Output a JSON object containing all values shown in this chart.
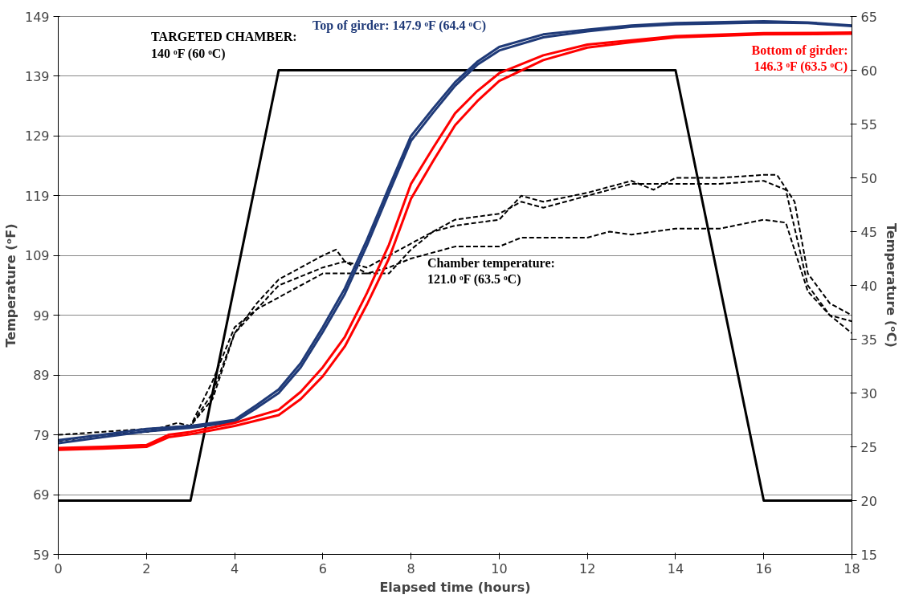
{
  "chart_data": {
    "type": "line",
    "xlabel": "Elapsed time (hours)",
    "ylabel": "Temperature (ᵒF)",
    "y2label": "Temperature (ᵒC)",
    "xlim": [
      0,
      18
    ],
    "xticks": [
      0,
      2,
      4,
      6,
      8,
      10,
      12,
      14,
      16,
      18
    ],
    "ylim": [
      59,
      149
    ],
    "yticks": [
      59,
      69,
      79,
      89,
      99,
      109,
      119,
      129,
      139,
      149
    ],
    "y2lim": [
      15,
      65
    ],
    "y2ticks": [
      15,
      20,
      25,
      30,
      35,
      40,
      45,
      50,
      55,
      60,
      65
    ],
    "grid": "y",
    "marker": "none",
    "series": [
      {
        "color": "#000000",
        "line_style": "solid",
        "x": [
          0,
          3,
          5,
          14,
          16,
          18
        ],
        "values": [
          68,
          68,
          140,
          140,
          68,
          68
        ]
      },
      {
        "color": "#000000",
        "line_style": "dashed",
        "x": [
          0,
          1,
          2,
          2.7,
          3,
          3.5,
          4,
          4.5,
          5,
          5.5,
          6,
          6.3,
          6.5,
          7,
          7.5,
          8,
          8.5,
          9,
          10,
          10.5,
          11,
          12,
          13,
          13.5,
          14,
          15,
          16,
          16.3,
          16.7,
          17,
          17.5,
          18
        ],
        "values": [
          78,
          79,
          79.5,
          81,
          80.5,
          85,
          96,
          101,
          105,
          107,
          109,
          110,
          108,
          106,
          106,
          110,
          113,
          114,
          115,
          119,
          118,
          119.5,
          121.5,
          120,
          122,
          122,
          122.5,
          122.5,
          118,
          106,
          101,
          99
        ]
      },
      {
        "color": "#000000",
        "line_style": "dashed",
        "x": [
          0,
          1,
          2,
          3,
          3.5,
          4,
          5,
          6,
          6.5,
          7,
          8,
          9,
          10,
          10.5,
          11,
          12,
          13,
          14,
          15,
          16,
          16.5,
          17,
          17.5,
          18
        ],
        "values": [
          78,
          79,
          79.5,
          80.5,
          86,
          96,
          104,
          107,
          108,
          107,
          111,
          115,
          116,
          118,
          117,
          119,
          121,
          121,
          121,
          121.5,
          120,
          104,
          99,
          96
        ]
      },
      {
        "color": "#000000",
        "line_style": "dashed",
        "x": [
          0,
          2,
          3,
          3.5,
          4,
          4.5,
          5,
          5.5,
          6,
          6.5,
          7,
          7.5,
          8,
          9,
          10,
          10.5,
          11,
          12,
          12.5,
          13,
          14,
          15,
          16,
          16.5,
          17,
          17.5,
          18
        ],
        "values": [
          79,
          80,
          80.5,
          88,
          97,
          100,
          102,
          104,
          106,
          106,
          106,
          107,
          108.5,
          110.5,
          110.5,
          112,
          112,
          112,
          113,
          112.5,
          113.5,
          113.5,
          115,
          114.5,
          103,
          99,
          98
        ]
      },
      {
        "color": "#1f3a78",
        "line_style": "solid",
        "x": [
          0,
          1,
          2,
          3,
          4,
          4.5,
          5,
          5.5,
          6,
          6.5,
          7,
          7.5,
          8,
          8.5,
          9,
          9.5,
          10,
          11,
          12,
          13,
          14,
          16,
          17,
          18
        ],
        "values": [
          78.1,
          79,
          80,
          80.5,
          81.5,
          84,
          86.6,
          91,
          97,
          103.5,
          111.6,
          120.4,
          129,
          133.6,
          138,
          141.4,
          143.9,
          146,
          146.8,
          147.5,
          147.9,
          148.2,
          148,
          147.5
        ]
      },
      {
        "color": "#1f3a78",
        "line_style": "solid",
        "x": [
          0,
          1,
          2,
          3,
          4,
          4.5,
          5,
          5.5,
          6,
          6.5,
          7,
          7.5,
          8,
          8.5,
          9,
          9.5,
          10,
          11,
          12,
          13,
          14,
          16,
          17,
          18
        ],
        "values": [
          77.6,
          78.6,
          79.6,
          80.2,
          81.2,
          83.5,
          86,
          90.3,
          96.2,
          102.6,
          110.7,
          119.5,
          128.2,
          132.9,
          137.4,
          140.9,
          143.3,
          145.5,
          146.5,
          147.3,
          147.7,
          148,
          147.9,
          147.4
        ]
      },
      {
        "color": "#ff0000",
        "line_style": "solid",
        "x": [
          0,
          1,
          2,
          2.5,
          3,
          4,
          5,
          5.5,
          6,
          6.5,
          7,
          7.5,
          8,
          8.5,
          9,
          9.5,
          10,
          11,
          12,
          13,
          14,
          16,
          18
        ],
        "values": [
          76.8,
          77,
          77.3,
          79,
          79.5,
          81,
          83.2,
          86.2,
          90.3,
          95.4,
          102.7,
          110.8,
          121,
          127,
          132.8,
          136.5,
          139.5,
          142.5,
          144.3,
          145,
          145.7,
          146.2,
          146.3
        ]
      },
      {
        "color": "#ff0000",
        "line_style": "solid",
        "x": [
          0,
          1,
          2,
          2.5,
          3,
          4,
          5,
          5.5,
          6,
          6.5,
          7,
          7.5,
          8,
          8.5,
          9,
          9.5,
          10,
          11,
          12,
          13,
          14,
          16,
          18
        ],
        "values": [
          76.5,
          76.7,
          77,
          78.6,
          79.1,
          80.5,
          82.3,
          85,
          88.8,
          93.8,
          100.8,
          108.5,
          118.5,
          124.8,
          130.8,
          134.8,
          138.2,
          141.7,
          143.8,
          144.7,
          145.5,
          146,
          146.1
        ]
      }
    ],
    "annotations": [
      "Top of girder: 147.9 ᵒF (64.4 ᵒC)",
      "TARGETED CHAMBER:\n140 ᵒF (60 ᵒC)",
      "Bottom of girder:\n146.3 ᵒF (63.5 ᵒC)",
      "Chamber temperature:\n121.0 ᵒF (63.5 ᵒC)"
    ]
  }
}
